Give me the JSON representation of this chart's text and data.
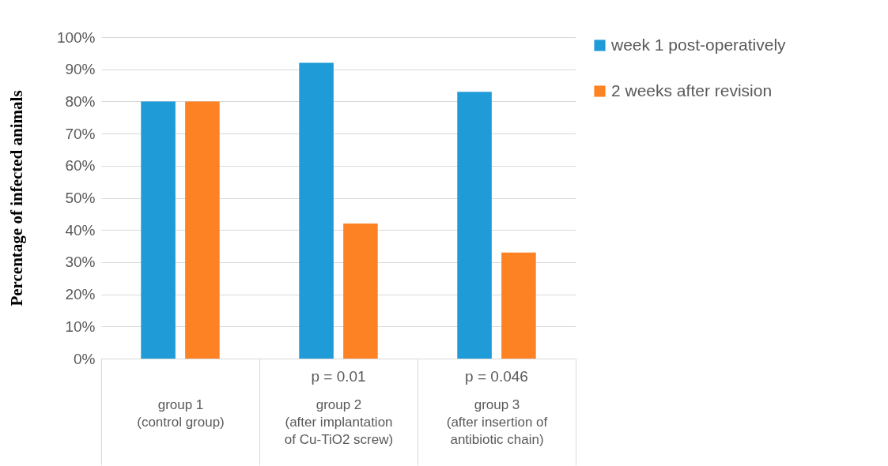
{
  "chart_data": {
    "type": "bar",
    "ylabel": "Percentage of infected animals",
    "categories": [
      "group 1\n(control group)",
      "group 2\n(after implantation\nof Cu-TiO2 screw)",
      "group 3\n(after insertion of\nantibiotic chain)"
    ],
    "series": [
      {
        "name": "week 1 post-operatively",
        "color": "#1f9bd7",
        "values": [
          80,
          92,
          83
        ]
      },
      {
        "name": "2 weeks after revision",
        "color": "#fd8224",
        "values": [
          80,
          42,
          33
        ]
      }
    ],
    "ylim": [
      0,
      100
    ],
    "yticks": [
      {
        "value": 0,
        "label": "0%"
      },
      {
        "value": 10,
        "label": "10%"
      },
      {
        "value": 20,
        "label": "20%"
      },
      {
        "value": 30,
        "label": "30%"
      },
      {
        "value": 40,
        "label": "40%"
      },
      {
        "value": 50,
        "label": "50%"
      },
      {
        "value": 60,
        "label": "60%"
      },
      {
        "value": 70,
        "label": "70%"
      },
      {
        "value": 80,
        "label": "80%"
      },
      {
        "value": 90,
        "label": "90%"
      },
      {
        "value": 100,
        "label": "100%"
      }
    ],
    "annotations": [
      "p = 0.01",
      "p = 0.046"
    ],
    "grid": "y",
    "legend": "top right"
  }
}
